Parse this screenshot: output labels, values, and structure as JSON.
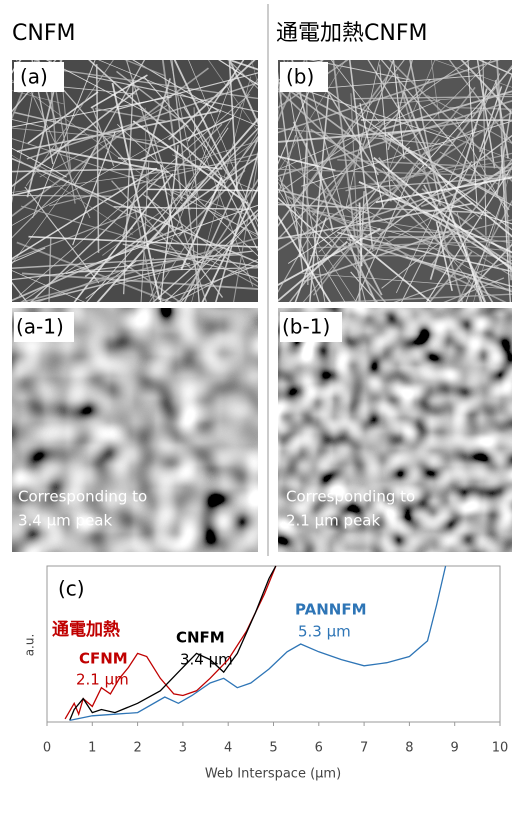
{
  "header": {
    "left": "CNFM",
    "right": "通電加熱CNFM"
  },
  "panels": [
    {
      "label": "(a)"
    },
    {
      "label": "(b)"
    },
    {
      "label": "(a-1)",
      "caption": [
        "Corresponding to",
        "3.4 µm peak"
      ]
    },
    {
      "label": "(b-1)",
      "caption": [
        "Corresponding to",
        "2.1 µm peak"
      ]
    }
  ],
  "chart_data": {
    "type": "line",
    "panel_label": "(c)",
    "xlabel": "Web Interspace (µm)",
    "ylabel": "a.u.",
    "xlim": [
      0,
      10
    ],
    "xticks": [
      0,
      1,
      2,
      3,
      4,
      5,
      6,
      7,
      8,
      9,
      10
    ],
    "ylim": [
      0,
      1
    ],
    "series": [
      {
        "name": "CFNM",
        "prefix": "通電加熱",
        "peak_label": "2.1 µm",
        "color": "#c00000",
        "x": [
          0.4,
          0.6,
          0.7,
          0.8,
          1.0,
          1.2,
          1.4,
          1.6,
          1.8,
          2.0,
          2.2,
          2.5,
          2.8,
          3.0,
          3.3,
          3.6,
          4.0,
          4.4,
          4.8,
          5.05
        ],
        "values": [
          0.02,
          0.12,
          0.05,
          0.15,
          0.1,
          0.22,
          0.18,
          0.28,
          0.35,
          0.44,
          0.42,
          0.28,
          0.18,
          0.17,
          0.2,
          0.28,
          0.4,
          0.58,
          0.82,
          1.0
        ]
      },
      {
        "name": "CNFM",
        "peak_label": "3.4 µm",
        "color": "#000000",
        "x": [
          0.5,
          0.6,
          0.8,
          1.0,
          1.2,
          1.5,
          2.0,
          2.5,
          2.9,
          3.3,
          3.6,
          3.9,
          4.2,
          4.6,
          4.9,
          5.05
        ],
        "values": [
          0.01,
          0.08,
          0.15,
          0.06,
          0.08,
          0.06,
          0.12,
          0.2,
          0.32,
          0.44,
          0.4,
          0.32,
          0.44,
          0.7,
          0.92,
          1.0
        ]
      },
      {
        "name": "PANNFM",
        "peak_label": "5.3 µm",
        "color": "#2e75b6",
        "x": [
          0.5,
          1.0,
          1.5,
          2.0,
          2.6,
          2.9,
          3.2,
          3.6,
          3.9,
          4.2,
          4.5,
          4.9,
          5.3,
          5.6,
          6.0,
          6.5,
          7.0,
          7.5,
          8.0,
          8.4,
          8.6,
          8.8
        ],
        "values": [
          0.01,
          0.04,
          0.05,
          0.06,
          0.16,
          0.12,
          0.17,
          0.25,
          0.28,
          0.22,
          0.25,
          0.34,
          0.45,
          0.5,
          0.45,
          0.4,
          0.36,
          0.38,
          0.42,
          0.52,
          0.75,
          1.0
        ]
      }
    ]
  }
}
